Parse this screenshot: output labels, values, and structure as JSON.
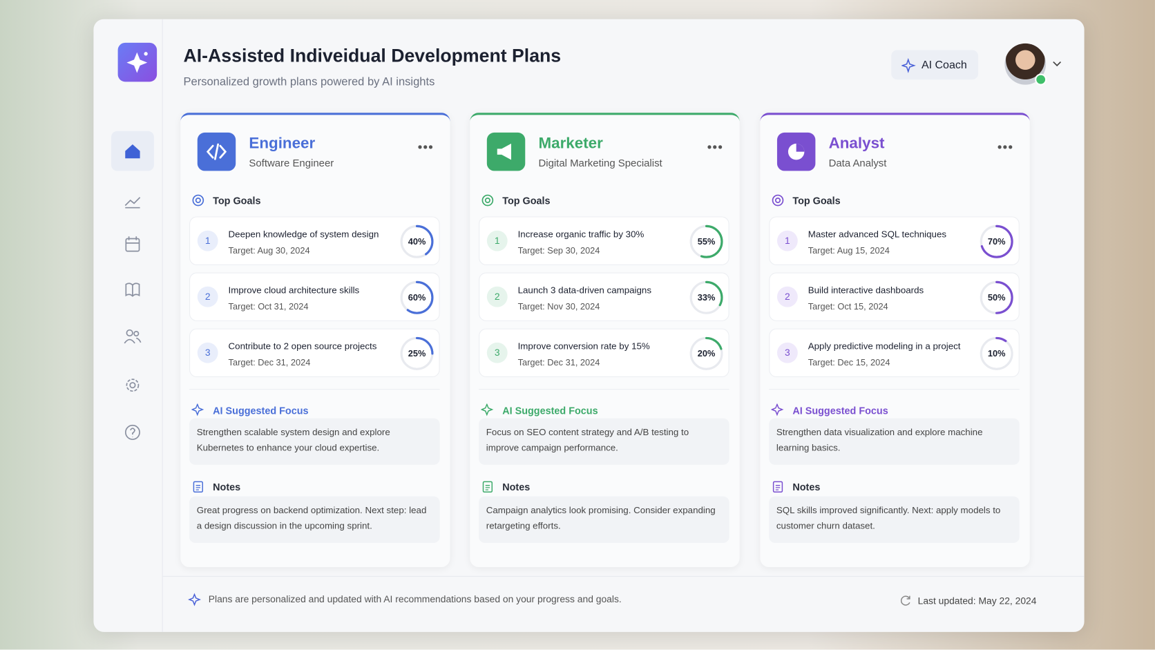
{
  "header": {
    "title": "AI-Assisted Indiveidual Development Plans",
    "subtitle": "Personalized growth plans powered by AI insights",
    "coach_button": "AI Coach"
  },
  "cards": [
    {
      "name": "Engineer",
      "role": "Software Engineer",
      "goals_label": "Top Goals",
      "goals": [
        {
          "number": "1",
          "text": "Deepen knowledge of system design",
          "target": "Target: Aug 30, 2024",
          "progress": {
            "value": 40,
            "label": "40%"
          }
        },
        {
          "number": "2",
          "text": "Improve cloud architecture skills",
          "target": "Target: Oct 31, 2024",
          "progress": {
            "value": 60,
            "label": "60%"
          }
        },
        {
          "number": "3",
          "text": "Contribute to 2 open source projects",
          "target": "Target: Dec 31, 2024",
          "progress": {
            "value": 25,
            "label": "25%"
          }
        }
      ],
      "focus_label": "AI Suggested Focus",
      "focus": "Strengthen scalable system design and explore Kubernetes to enhance your cloud expertise.",
      "notes_label": "Notes",
      "notes": "Great progress on backend optimization. Next step: lead a design discussion in the upcoming sprint."
    },
    {
      "name": "Marketer",
      "role": "Digital Marketing Specialist",
      "goals_label": "Top Goals",
      "goals": [
        {
          "number": "1",
          "text": "Increase organic traffic by 30%",
          "target": "Target: Sep 30, 2024",
          "progress": {
            "value": 55,
            "label": "55%"
          }
        },
        {
          "number": "2",
          "text": "Launch 3 data-driven campaigns",
          "target": "Target: Nov 30, 2024",
          "progress": {
            "value": 33,
            "label": "33%"
          }
        },
        {
          "number": "3",
          "text": "Improve conversion rate by 15%",
          "target": "Target: Dec 31, 2024",
          "progress": {
            "value": 20,
            "label": "20%"
          }
        }
      ],
      "focus_label": "AI Suggested Focus",
      "focus": "Focus on SEO content strategy and A/B testing to improve campaign performance.",
      "notes_label": "Notes",
      "notes": "Campaign analytics look promising. Consider expanding retargeting efforts."
    },
    {
      "name": "Analyst",
      "role": "Data Analyst",
      "goals_label": "Top Goals",
      "goals": [
        {
          "number": "1",
          "text": "Master advanced SQL techniques",
          "target": "Target: Aug 15, 2024",
          "progress": {
            "value": 70,
            "label": "70%"
          }
        },
        {
          "number": "2",
          "text": "Build interactive dashboards",
          "target": "Target: Oct 15, 2024",
          "progress": {
            "value": 50,
            "label": "50%"
          }
        },
        {
          "number": "3",
          "text": "Apply predictive modeling in a project",
          "target": "Target: Dec 15, 2024",
          "progress": {
            "value": 10,
            "label": "10%"
          }
        }
      ],
      "focus_label": "AI Suggested Focus",
      "focus": "Strengthen data visualization and explore machine learning basics.",
      "notes_label": "Notes",
      "notes": "SQL skills improved significantly. Next: apply models to customer churn dataset."
    }
  ],
  "footer": {
    "note": "Plans are personalized and updated with AI recommendations based on your progress and goals.",
    "last_updated": "Last updated: May 22, 2024"
  }
}
